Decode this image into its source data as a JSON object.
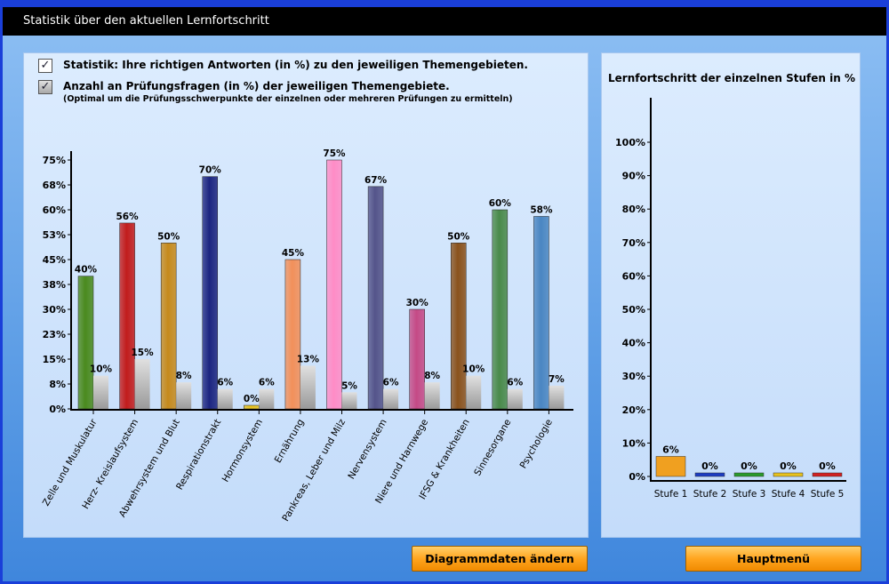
{
  "window": {
    "title": "Statistik über den aktuellen Lernfortschritt"
  },
  "legend": {
    "item1": {
      "checked_glyph": "✓",
      "label": "Statistik: Ihre richtigen Antworten (in %) zu den jeweiligen Themengebieten."
    },
    "item2": {
      "checked_glyph": "✓",
      "label": "Anzahl an Prüfungsfragen (in %) der jeweiligen Themengebiete.",
      "sublabel": "(Optimal um die Prüfungsschwerpunkte der einzelnen oder mehreren Prüfungen zu ermitteln)"
    }
  },
  "right_panel": {
    "title": "Lernfortschritt der einzelnen Stufen in %"
  },
  "buttons": {
    "change": "Diagrammdaten ändern",
    "menu": "Hauptmenü"
  },
  "chart_data": [
    {
      "type": "bar",
      "title": "",
      "xlabel": "",
      "ylabel": "",
      "ylim": [
        0,
        78
      ],
      "y_ticks": [
        "0%",
        "8%",
        "15%",
        "23%",
        "30%",
        "38%",
        "45%",
        "53%",
        "60%",
        "68%",
        "75%"
      ],
      "y_tick_values": [
        0,
        7.5,
        15,
        22.5,
        30,
        37.5,
        45,
        52.5,
        60,
        67.5,
        75
      ],
      "categories": [
        "Zelle und Muskulatur",
        "Herz- Kreislaufsystem",
        "Abwehrsystem und Blut",
        "Respirationstrakt",
        "Hormonsystem",
        "Ernährung",
        "Pankreas, Leber und Milz",
        "Nervensystem",
        "Niere und Harnwege",
        "IFSG & Krankheiten",
        "Sinnesorgane",
        "Psychologie"
      ],
      "series": [
        {
          "values": [
            40,
            56,
            50,
            70,
            0,
            45,
            75,
            67,
            30,
            50,
            60,
            58
          ],
          "labels": [
            "40%",
            "56%",
            "50%",
            "70%",
            "0%",
            "45%",
            "75%",
            "67%",
            "30%",
            "50%",
            "60%",
            "58%"
          ],
          "colors": [
            "#4a8a1e",
            "#c21c1c",
            "#c68a1c",
            "#1c2580",
            "#e8c21c",
            "#f2905a",
            "#ff8cc6",
            "#54548a",
            "#c54a86",
            "#8a521c",
            "#4a8a4a",
            "#4a86c2"
          ]
        },
        {
          "values": [
            10,
            15,
            8,
            6,
            6,
            13,
            5,
            6,
            8,
            10,
            6,
            7
          ],
          "labels": [
            "10%",
            "15%",
            "8%",
            "6%",
            "6%",
            "13%",
            "5%",
            "6%",
            "8%",
            "10%",
            "6%",
            "7%"
          ],
          "colors": [
            "#b4b4b4"
          ]
        }
      ]
    },
    {
      "type": "bar",
      "title": "Lernfortschritt der einzelnen Stufen in %",
      "xlabel": "",
      "ylabel": "",
      "ylim": [
        0,
        110
      ],
      "y_ticks": [
        "0%",
        "10%",
        "20%",
        "30%",
        "40%",
        "50%",
        "60%",
        "70%",
        "80%",
        "90%",
        "100%"
      ],
      "y_tick_values": [
        0,
        10,
        20,
        30,
        40,
        50,
        60,
        70,
        80,
        90,
        100
      ],
      "categories": [
        "Stufe 1",
        "Stufe 2",
        "Stufe 3",
        "Stufe 4",
        "Stufe 5"
      ],
      "series": [
        {
          "values": [
            6,
            0,
            0,
            0,
            0
          ],
          "labels": [
            "6%",
            "0%",
            "0%",
            "0%",
            "0%"
          ],
          "colors": [
            "#f0a020",
            "#1c3cc2",
            "#2a9a2a",
            "#e8c21c",
            "#d22020"
          ]
        }
      ]
    }
  ]
}
